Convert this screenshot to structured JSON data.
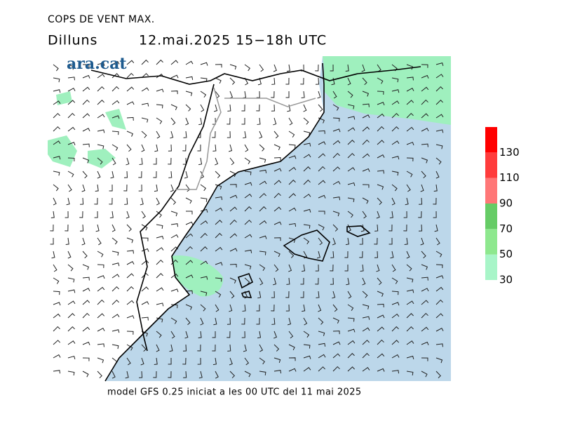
{
  "header": {
    "title": "COPS DE VENT MAX.",
    "day": "Dilluns",
    "period": "12.mai.2025 15−18h UTC",
    "logo": "ara.cat"
  },
  "footer": "model GFS 0.25 iniciat a les 00 UTC del 11 mai 2025",
  "legend": {
    "ticks": [
      30,
      50,
      70,
      90,
      110,
      130
    ],
    "colors": [
      "#a8f5c8",
      "#8ee88e",
      "#66cc66",
      "#ff7777",
      "#ff3c3c",
      "#ff0000"
    ]
  }
}
